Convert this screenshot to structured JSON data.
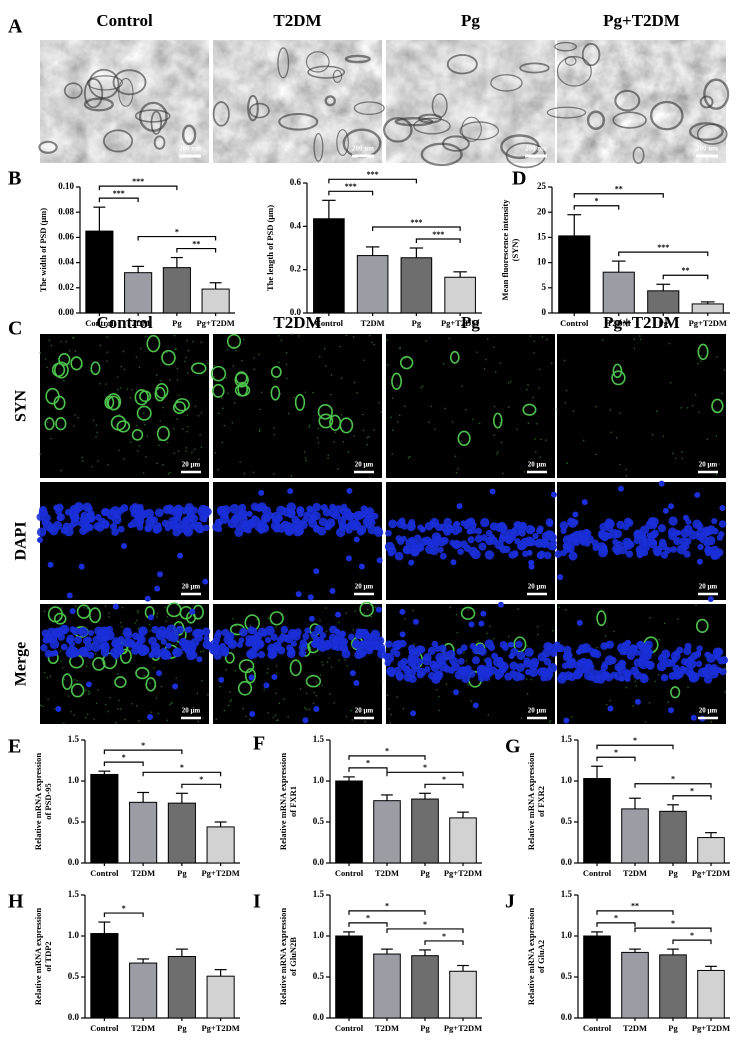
{
  "micrographs_A": {
    "letter": "A",
    "columns": [
      "Control",
      "T2DM",
      "Pg",
      "Pg+T2DM"
    ],
    "scale_bar": "200 nm"
  },
  "micrographs_C": {
    "letter": "C",
    "columns": [
      "Control",
      "T2DM",
      "Pg",
      "Pg+T2DM"
    ],
    "rows": [
      "SYN",
      "DAPI",
      "Merge"
    ],
    "scale_bar": "20 μm"
  },
  "chart_data": [
    {
      "type": "bar",
      "panel": "B",
      "y_label": [
        "The width of PSD (μm)"
      ],
      "categories": [
        "Control",
        "T2DM",
        "Pg",
        "Pg+T2DM"
      ],
      "values": [
        0.065,
        0.032,
        0.036,
        0.019
      ],
      "errors": [
        0.019,
        0.005,
        0.008,
        0.005
      ],
      "colors": [
        "#000000",
        "#9c9ca4",
        "#6e6e6e",
        "#d2d2d2"
      ],
      "ylim": [
        0,
        0.1
      ],
      "yticks": [
        {
          "value": 0,
          "label": "0.00"
        },
        0.02,
        0.04,
        0.06,
        0.08,
        {
          "value": 0.1,
          "label": "0.10"
        }
      ],
      "significance": [
        {
          "between": [
            "Control",
            "T2DM"
          ],
          "label": "***"
        },
        {
          "between": [
            "Control",
            "Pg"
          ],
          "label": "***"
        },
        {
          "between": [
            "Pg",
            "Pg+T2DM"
          ],
          "label": "**"
        },
        {
          "between": [
            "T2DM",
            "Pg+T2DM"
          ],
          "label": "*"
        }
      ]
    },
    {
      "type": "bar",
      "y_label": [
        "The length of PSD (μm)"
      ],
      "categories": [
        "Control",
        "T2DM",
        "Pg",
        "Pg+T2DM"
      ],
      "values": [
        0.435,
        0.265,
        0.255,
        0.165
      ],
      "errors": [
        0.085,
        0.04,
        0.045,
        0.025
      ],
      "colors": [
        "#000000",
        "#9c9ca4",
        "#6e6e6e",
        "#d2d2d2"
      ],
      "ylim": [
        0,
        0.6
      ],
      "yticks": [
        {
          "value": 0,
          "label": "0.0"
        },
        0.2,
        0.4,
        0.6
      ],
      "significance": [
        {
          "between": [
            "Control",
            "T2DM"
          ],
          "label": "***"
        },
        {
          "between": [
            "Control",
            "Pg"
          ],
          "label": "***"
        },
        {
          "between": [
            "Pg",
            "Pg+T2DM"
          ],
          "label": "***"
        },
        {
          "between": [
            "T2DM",
            "Pg+T2DM"
          ],
          "label": "***"
        }
      ]
    },
    {
      "type": "bar",
      "panel": "D",
      "y_label": [
        "Mean fluorescence intensity",
        "(SYN)"
      ],
      "categories": [
        "Control",
        "T2DM",
        "Pg",
        "Pg+T2DM"
      ],
      "values": [
        15.3,
        8.1,
        4.4,
        1.8
      ],
      "errors": [
        4.2,
        2.2,
        1.3,
        0.4
      ],
      "colors": [
        "#000000",
        "#9c9ca4",
        "#6e6e6e",
        "#d2d2d2"
      ],
      "ylim": [
        0,
        25
      ],
      "yticks": [
        0,
        5,
        10,
        15,
        20,
        25
      ],
      "significance": [
        {
          "between": [
            "Control",
            "T2DM"
          ],
          "label": "*"
        },
        {
          "between": [
            "Control",
            "Pg"
          ],
          "label": "**"
        },
        {
          "between": [
            "Pg",
            "Pg+T2DM"
          ],
          "label": "**"
        },
        {
          "between": [
            "T2DM",
            "Pg+T2DM"
          ],
          "label": "***"
        }
      ]
    },
    {
      "type": "bar",
      "panel": "E",
      "y_label": [
        "Relative mRNA expression",
        "of PSD-95"
      ],
      "categories": [
        "Control",
        "T2DM",
        "Pg",
        "Pg+T2DM"
      ],
      "values": [
        1.08,
        0.74,
        0.73,
        0.44
      ],
      "errors": [
        0.04,
        0.12,
        0.12,
        0.06
      ],
      "colors": [
        "#000000",
        "#9c9ca4",
        "#6e6e6e",
        "#d2d2d2"
      ],
      "ylim": [
        0,
        1.5
      ],
      "yticks": [
        {
          "value": 0,
          "label": "0.0"
        },
        0.5,
        {
          "value": 1,
          "label": "1.0"
        },
        1.5
      ],
      "significance": [
        {
          "between": [
            "Control",
            "T2DM"
          ],
          "label": "*"
        },
        {
          "between": [
            "Control",
            "Pg"
          ],
          "label": "*"
        },
        {
          "between": [
            "Pg",
            "Pg+T2DM"
          ],
          "label": "*"
        },
        {
          "between": [
            "T2DM",
            "Pg+T2DM"
          ],
          "label": "*"
        }
      ]
    },
    {
      "type": "bar",
      "panel": "F",
      "y_label": [
        "Relative mRNA expression",
        "of FXR1"
      ],
      "categories": [
        "Control",
        "T2DM",
        "Pg",
        "Pg+T2DM"
      ],
      "values": [
        1.0,
        0.76,
        0.78,
        0.55
      ],
      "errors": [
        0.05,
        0.07,
        0.07,
        0.07
      ],
      "colors": [
        "#000000",
        "#9c9ca4",
        "#6e6e6e",
        "#d2d2d2"
      ],
      "ylim": [
        0,
        1.5
      ],
      "yticks": [
        {
          "value": 0,
          "label": "0.0"
        },
        0.5,
        {
          "value": 1,
          "label": "1.0"
        },
        1.5
      ],
      "significance": [
        {
          "between": [
            "Control",
            "T2DM"
          ],
          "label": "*"
        },
        {
          "between": [
            "Control",
            "Pg"
          ],
          "label": "*"
        },
        {
          "between": [
            "Pg",
            "Pg+T2DM"
          ],
          "label": "*"
        },
        {
          "between": [
            "T2DM",
            "Pg+T2DM"
          ],
          "label": "*"
        }
      ]
    },
    {
      "type": "bar",
      "panel": "G",
      "y_label": [
        "Relative mRNA expression",
        "of FXR2"
      ],
      "categories": [
        "Control",
        "T2DM",
        "Pg",
        "Pg+T2DM"
      ],
      "values": [
        1.03,
        0.66,
        0.63,
        0.31
      ],
      "errors": [
        0.15,
        0.13,
        0.08,
        0.06
      ],
      "colors": [
        "#000000",
        "#9c9ca4",
        "#6e6e6e",
        "#d2d2d2"
      ],
      "ylim": [
        0,
        1.5
      ],
      "yticks": [
        {
          "value": 0,
          "label": "0.0"
        },
        0.5,
        {
          "value": 1,
          "label": "1.0"
        },
        1.5
      ],
      "significance": [
        {
          "between": [
            "Control",
            "T2DM"
          ],
          "label": "*"
        },
        {
          "between": [
            "Control",
            "Pg"
          ],
          "label": "*"
        },
        {
          "between": [
            "Pg",
            "Pg+T2DM"
          ],
          "label": "*"
        },
        {
          "between": [
            "T2DM",
            "Pg+T2DM"
          ],
          "label": "*"
        }
      ]
    },
    {
      "type": "bar",
      "panel": "H",
      "y_label": [
        "Relative mRNA expression",
        "of TDP2"
      ],
      "categories": [
        "Control",
        "T2DM",
        "Pg",
        "Pg+T2DM"
      ],
      "values": [
        1.03,
        0.67,
        0.75,
        0.51
      ],
      "errors": [
        0.14,
        0.05,
        0.09,
        0.08
      ],
      "colors": [
        "#000000",
        "#9c9ca4",
        "#6e6e6e",
        "#d2d2d2"
      ],
      "ylim": [
        0,
        1.5
      ],
      "yticks": [
        {
          "value": 0,
          "label": "0.0"
        },
        0.5,
        {
          "value": 1,
          "label": "1.0"
        },
        1.5
      ],
      "significance": [
        {
          "between": [
            "Control",
            "T2DM"
          ],
          "label": "*"
        }
      ]
    },
    {
      "type": "bar",
      "panel": "I",
      "y_label": [
        "Relative mRNA expression",
        "of GluN2B"
      ],
      "categories": [
        "Control",
        "T2DM",
        "Pg",
        "Pg+T2DM"
      ],
      "values": [
        1.0,
        0.78,
        0.76,
        0.57
      ],
      "errors": [
        0.05,
        0.06,
        0.07,
        0.07
      ],
      "colors": [
        "#000000",
        "#9c9ca4",
        "#6e6e6e",
        "#d2d2d2"
      ],
      "ylim": [
        0,
        1.5
      ],
      "yticks": [
        {
          "value": 0,
          "label": "0.0"
        },
        0.5,
        {
          "value": 1,
          "label": "1.0"
        },
        1.5
      ],
      "significance": [
        {
          "between": [
            "Control",
            "T2DM"
          ],
          "label": "*"
        },
        {
          "between": [
            "Control",
            "Pg"
          ],
          "label": "*"
        },
        {
          "between": [
            "Pg",
            "Pg+T2DM"
          ],
          "label": "*"
        },
        {
          "between": [
            "T2DM",
            "Pg+T2DM"
          ],
          "label": "*"
        }
      ]
    },
    {
      "type": "bar",
      "panel": "J",
      "y_label": [
        "Relative mRNA expression",
        "of GluA2"
      ],
      "categories": [
        "Control",
        "T2DM",
        "Pg",
        "Pg+T2DM"
      ],
      "values": [
        1.0,
        0.8,
        0.77,
        0.58
      ],
      "errors": [
        0.05,
        0.04,
        0.07,
        0.05
      ],
      "colors": [
        "#000000",
        "#9c9ca4",
        "#6e6e6e",
        "#d2d2d2"
      ],
      "ylim": [
        0,
        1.5
      ],
      "yticks": [
        {
          "value": 0,
          "label": "0.0"
        },
        0.5,
        {
          "value": 1,
          "label": "1.0"
        },
        1.5
      ],
      "significance": [
        {
          "between": [
            "Control",
            "T2DM"
          ],
          "label": "*"
        },
        {
          "between": [
            "Control",
            "Pg"
          ],
          "label": "**"
        },
        {
          "between": [
            "Pg",
            "Pg+T2DM"
          ],
          "label": "*"
        },
        {
          "between": [
            "T2DM",
            "Pg+T2DM"
          ],
          "label": "*"
        }
      ]
    }
  ]
}
